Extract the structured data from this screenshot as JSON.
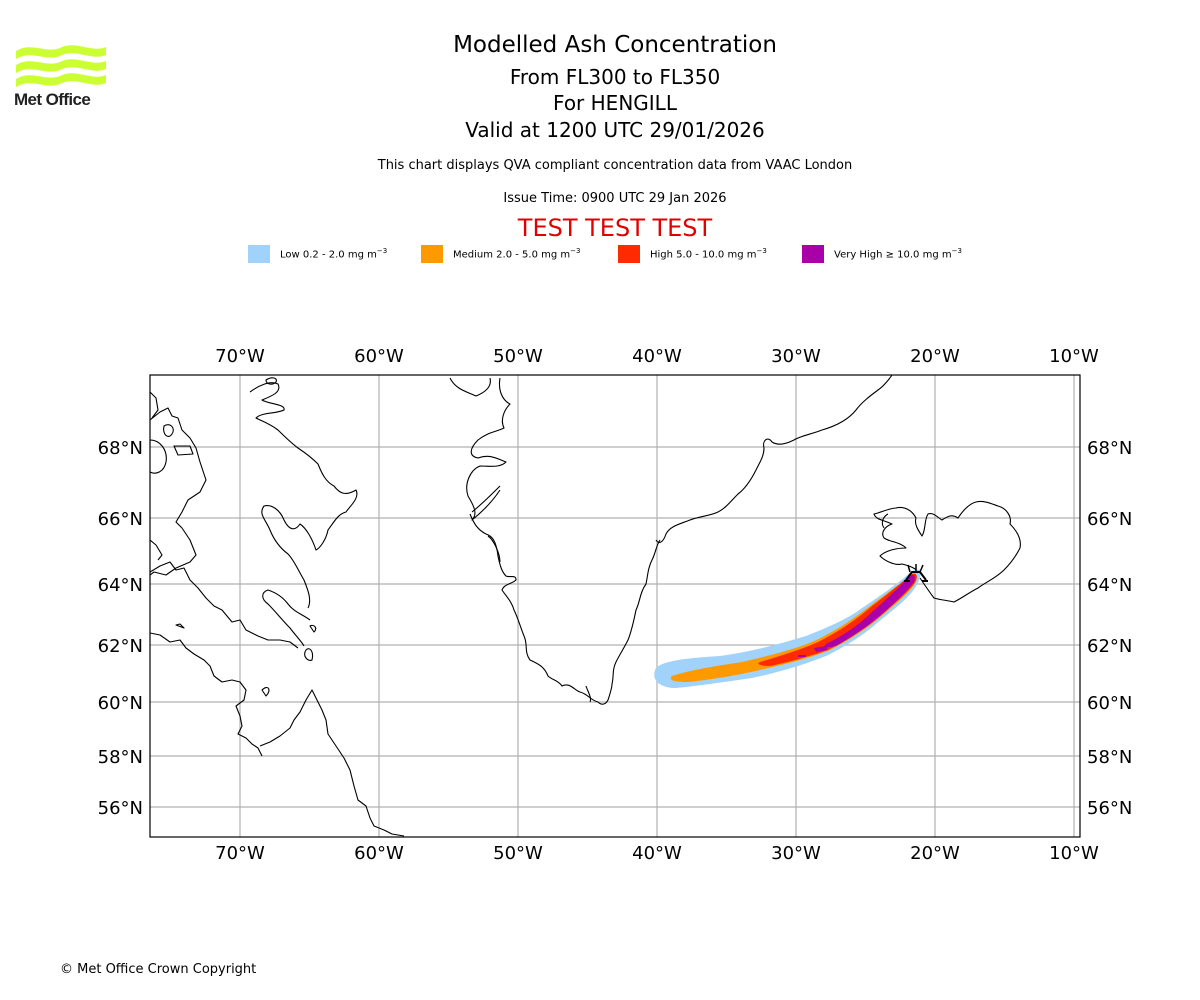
{
  "logo": {
    "text": "Met Office",
    "color": "#ccff33"
  },
  "header": {
    "title": "Modelled Ash Concentration",
    "level_range": "From FL300 to FL350",
    "volcano": "For HENGILL",
    "valid_time": "Valid at 1200 UTC 29/01/2026",
    "subtitle": "This chart displays QVA compliant concentration data from VAAC London",
    "issue_time": "Issue Time: 0900 UTC 29 Jan 2026",
    "test_banner": "TEST TEST TEST",
    "test_color": "#e00000"
  },
  "legend": [
    {
      "label": "Low 0.2 - 2.0 mg m",
      "unit_exp": "−3",
      "color": "#a0d2fa"
    },
    {
      "label": "Medium 2.0 - 5.0 mg m",
      "unit_exp": "−3",
      "color": "#ff9900"
    },
    {
      "label": "High 5.0 - 10.0 mg m",
      "unit_exp": "−3",
      "color": "#ff2a00"
    },
    {
      "label": "Very High  ≥  10.0 mg m",
      "unit_exp": "−3",
      "color": "#aa00aa"
    }
  ],
  "map": {
    "lon_ticks": [
      "70°W",
      "60°W",
      "50°W",
      "40°W",
      "30°W",
      "20°W",
      "10°W"
    ],
    "lon_values": [
      -70,
      -60,
      -50,
      -40,
      -30,
      -20,
      -10
    ],
    "lat_ticks": [
      "68°N",
      "66°N",
      "64°N",
      "62°N",
      "60°N",
      "58°N",
      "56°N"
    ],
    "lat_values": [
      68,
      66,
      64,
      62,
      60,
      58,
      56
    ],
    "volcano_symbol": "volcano-icon",
    "volcano_location": {
      "lon": -21.3,
      "lat": 64.1
    }
  },
  "footer": {
    "copyright": "© Met Office Crown Copyright"
  }
}
